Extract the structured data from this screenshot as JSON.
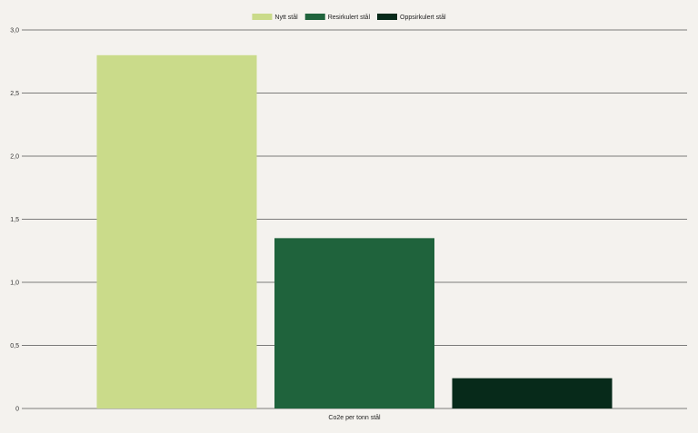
{
  "chart_data": {
    "type": "bar",
    "title": "",
    "xlabel": "",
    "ylabel": "",
    "categories": [
      "Co2e per tonn stål"
    ],
    "series": [
      {
        "name": "Nytt stål",
        "values": [
          2.8
        ],
        "color": "#cadb8a"
      },
      {
        "name": "Resirkulert stål",
        "values": [
          1.35
        ],
        "color": "#1f633c"
      },
      {
        "name": "Oppsirkulert stål",
        "values": [
          0.24
        ],
        "color": "#072a1a"
      }
    ],
    "ylim": [
      0,
      3.0
    ],
    "yticks": [
      0,
      0.5,
      1.0,
      1.5,
      2.0,
      2.5,
      3.0
    ],
    "ytick_labels": [
      "0",
      "0,5",
      "1,0",
      "1,5",
      "2,0",
      "2,5",
      "3,0"
    ],
    "grid": true,
    "legend_position": "top-center"
  },
  "colors": {
    "background": "#f4f2ee",
    "gridline": "#555555"
  }
}
